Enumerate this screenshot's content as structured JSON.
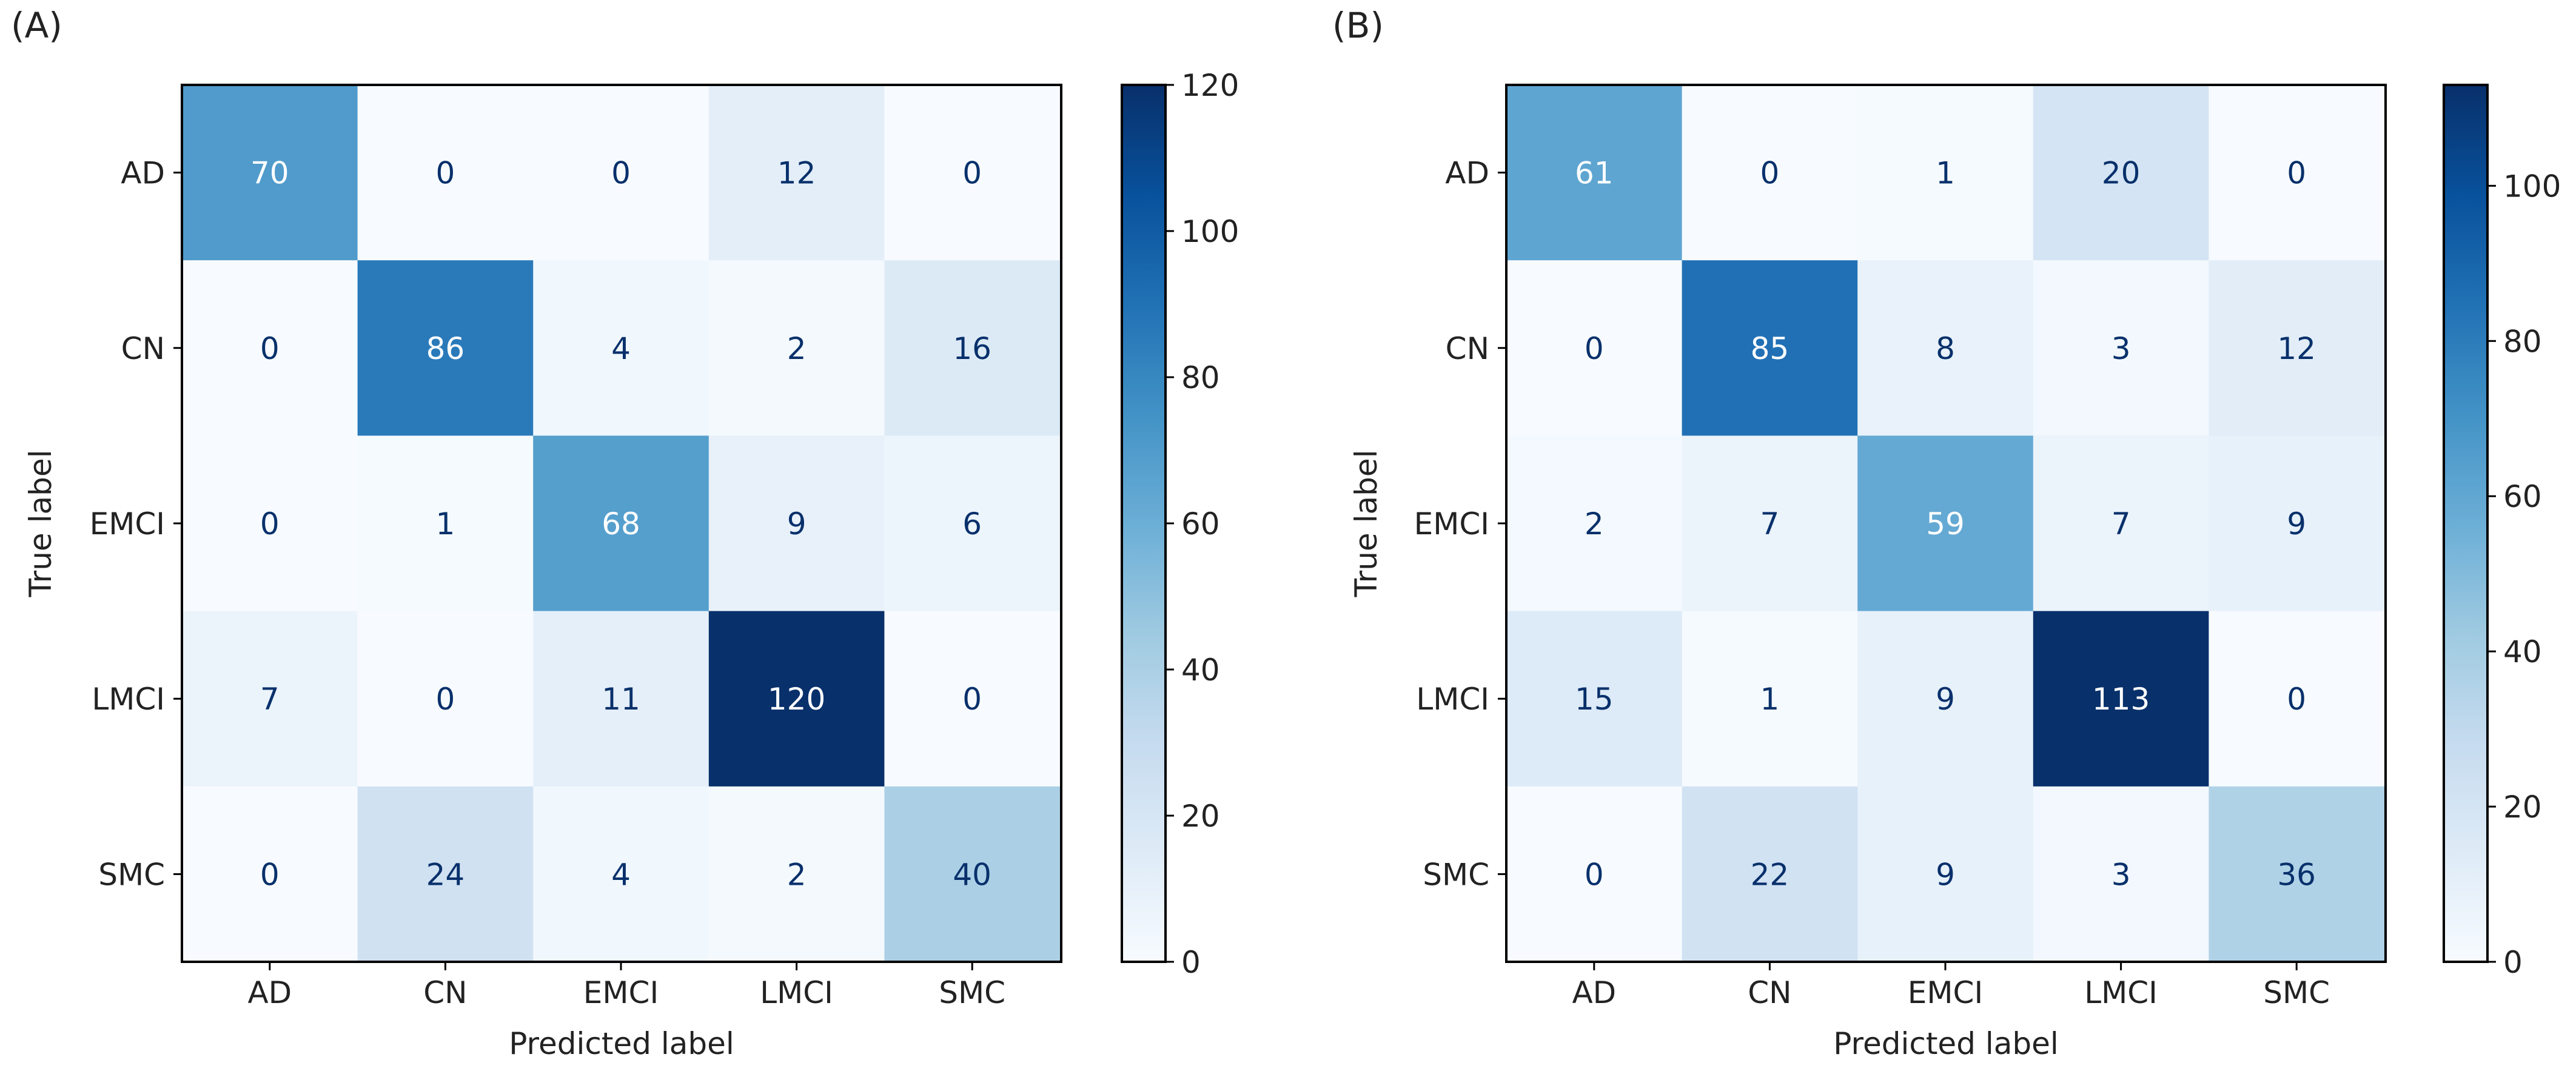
{
  "chart_data": [
    {
      "type": "heatmap",
      "panel_label": "(A)",
      "xlabel": "Predicted label",
      "ylabel": "True label",
      "categories": [
        "AD",
        "CN",
        "EMCI",
        "LMCI",
        "SMC"
      ],
      "matrix": [
        [
          70,
          0,
          0,
          12,
          0
        ],
        [
          0,
          86,
          4,
          2,
          16
        ],
        [
          0,
          1,
          68,
          9,
          6
        ],
        [
          7,
          0,
          11,
          120,
          0
        ],
        [
          0,
          24,
          4,
          2,
          40
        ]
      ],
      "colorbar": {
        "min": 0,
        "max": 120,
        "ticks": [
          0,
          20,
          40,
          60,
          80,
          100,
          120
        ]
      }
    },
    {
      "type": "heatmap",
      "panel_label": "(B)",
      "xlabel": "Predicted label",
      "ylabel": "True label",
      "categories": [
        "AD",
        "CN",
        "EMCI",
        "LMCI",
        "SMC"
      ],
      "matrix": [
        [
          61,
          0,
          1,
          20,
          0
        ],
        [
          0,
          85,
          8,
          3,
          12
        ],
        [
          2,
          7,
          59,
          7,
          9
        ],
        [
          15,
          1,
          9,
          113,
          0
        ],
        [
          0,
          22,
          9,
          3,
          36
        ]
      ],
      "colorbar": {
        "min": 0,
        "max": 113,
        "ticks": [
          0,
          20,
          40,
          60,
          80,
          100
        ]
      }
    }
  ],
  "colormap": {
    "name": "Blues",
    "stops": [
      "#f7fbff",
      "#deebf7",
      "#c6dbef",
      "#9ecae1",
      "#6baed6",
      "#4292c6",
      "#2171b5",
      "#08519c",
      "#08306b"
    ]
  },
  "annotation_colors": {
    "light": "#ffffff",
    "dark": "#08306b"
  }
}
